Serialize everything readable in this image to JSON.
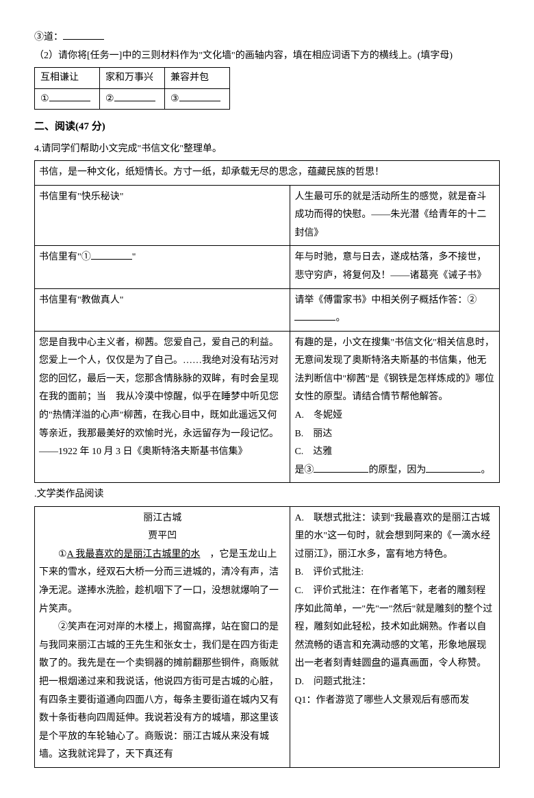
{
  "top": {
    "item3": "③道：",
    "task2_intro": "（2）请你将[任务一]中的三则材料作为\"文化墙\"的画轴内容，填在相应词语下方的横线上。(填字母)",
    "small_table": {
      "h1": "互相谦让",
      "h2": "家和万事兴",
      "h3": "兼容并包",
      "c1": "①",
      "c2": "②",
      "c3": "③"
    }
  },
  "section2_title": "二、阅读(47 分)",
  "q4_intro": "4.请同学们帮助小文完成\"书信文化\"整理单。",
  "table1": {
    "row1": "书信，是一种文化，纸短情长。方寸一纸，却承载无尽的思念，蕴藏民族的哲思！",
    "r2_left": "书信里有\"快乐秘诀\"",
    "r2_right": "人生最可乐的就是活动所生的感觉，就是奋斗成功而得的快慰。——朱光潜《给青年的十二封信》",
    "r3_left_a": "书信里有\"①",
    "r3_left_b": "\"",
    "r3_right": "年与时驰，意与日去，遂成枯落，多不接世，悲守穷庐，将复何及！——诸葛亮《诫子书》",
    "r4_left": "书信里有\"教做真人\"",
    "r4_right_a": "请举《傅雷家书》中相关例子概括作答：②",
    "r4_right_b": "。",
    "r5_left": "您是自我中心主义者，柳茜。您爱自己，爱自己的利益。您爱上一个人，仅仅是为了自己。……我绝对没有玷污对您的回忆，最后一天，您那含情脉脉的双眸，有时会呈现在我的面前；当　我从冷漠中惊醒，似乎在睡梦中听见您的\"热情洋溢的心声\"柳茜，在我心目中，既如此遥远又何等亲近，我那最美好的欢愉时光，永远留存为一段记忆。",
    "r5_left_sig": "——1922 年 10 月 3 日《奥斯特洛夫斯基书信集》",
    "r5_right_a": "有趣的是，小文在搜集\"书信文化\"相关信息时，无意间发现了奥斯特洛夫斯基的书信集，他无法判断信中\"柳茜\"是《钢铁是怎样炼成的》哪位女性的原型。请结合情节帮他解答。",
    "r5_right_optA": "A.　冬妮娅",
    "r5_right_optB": "B.　丽达",
    "r5_right_optC": "C.　达雅",
    "r5_right_d": "是③",
    "r5_right_e": "的原型，因为",
    "r5_right_f": "。"
  },
  "lit_title": ".文学类作品阅读",
  "table2": {
    "title": "丽江古城",
    "author": "贾平凹",
    "p1": "①A 我最喜欢的是丽江古城里的水　，它是玉龙山上下来的雪水，经双石大桥一分而三进城的，清冷有声，洁净无泥。遂捧水洗脸，趁机咽下了一口，没想就爆响了一片笑声。",
    "p2": "②笑声在河对岸的木楼上，揭窗高撑，站在窗口的是与我同来丽江古城的王先生和张女士，我们是在四方街走散了的。我先是在一个卖铜器的摊前翻那些铜件，商贩就把一根烟递过来和我说话，他说四方街可是古城的心脏，有四条主要街道通向四面八方，每条主要街道在城内又有数十条街巷向四周延伸。我说若没有方的城墙，那这里该是个平放的车轮轴心了。商贩说：丽江古城从来没有城墙。这我就诧异了，天下真还有",
    "noteA": "A.　联想式批注：读到\"我最喜欢的是丽江古城里的水\"这一句时，就会想到阿来的《一滴水经过丽江》，丽江水多，富有地方特色。",
    "noteB": "B.　评价式批注:",
    "noteC": "C.　评价式批注：在作者笔下，老者的雕刻程序如此简单，一\"先\"一\"然后\"就是雕刻的整个过程，雕刻如此轻松，技术如此娴熟。作者以自然流畅的语言和充满动感的文笔，形象地展现出一老者刻青蛙圆盘的逼真画面，令人称赞。",
    "noteD": "D.　问题式批注：",
    "noteQ1": "Q1：作者游览了哪些人文景观后有感而发"
  }
}
